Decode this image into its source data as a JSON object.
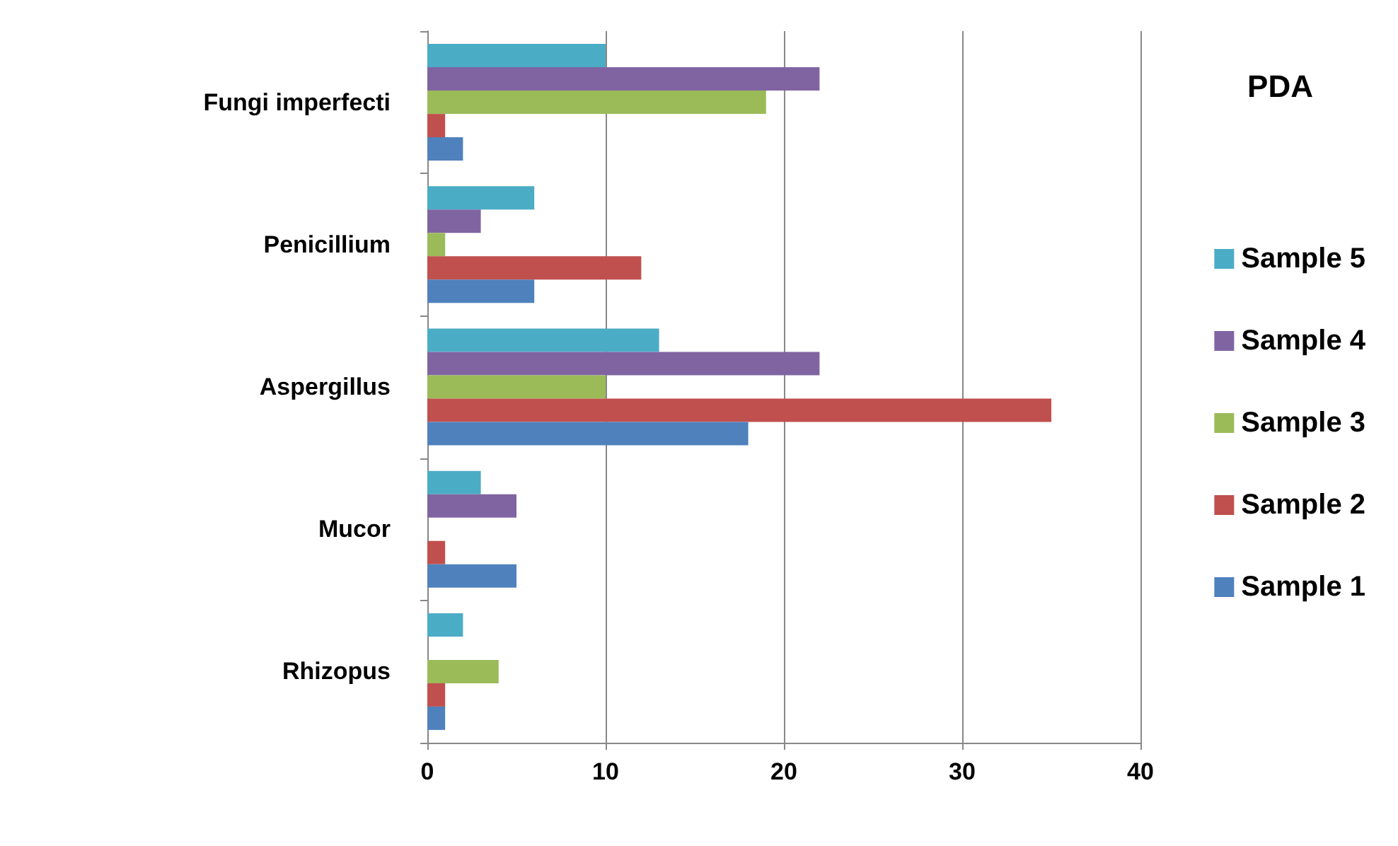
{
  "chart_data": {
    "type": "bar",
    "orientation": "horizontal",
    "title": "PDA",
    "categories": [
      "Fungi imperfecti",
      "Penicillium",
      "Aspergillus",
      "Mucor",
      "Rhizopus"
    ],
    "series": [
      {
        "name": "Sample 1",
        "color": "#4f81bd",
        "values": [
          2,
          6,
          18,
          5,
          1
        ]
      },
      {
        "name": "Sample 2",
        "color": "#c0504d",
        "values": [
          1,
          12,
          35,
          1,
          1
        ]
      },
      {
        "name": "Sample 3",
        "color": "#9bbb59",
        "values": [
          19,
          1,
          10,
          0,
          4
        ]
      },
      {
        "name": "Sample 4",
        "color": "#8064a2",
        "values": [
          22,
          3,
          22,
          5,
          0
        ]
      },
      {
        "name": "Sample 5",
        "color": "#4bacc6",
        "values": [
          10,
          6,
          13,
          3,
          2
        ]
      }
    ],
    "xlim": [
      0,
      40
    ],
    "xticks": [
      0,
      10,
      20,
      30,
      40
    ],
    "grid": "x",
    "legend": "right"
  }
}
